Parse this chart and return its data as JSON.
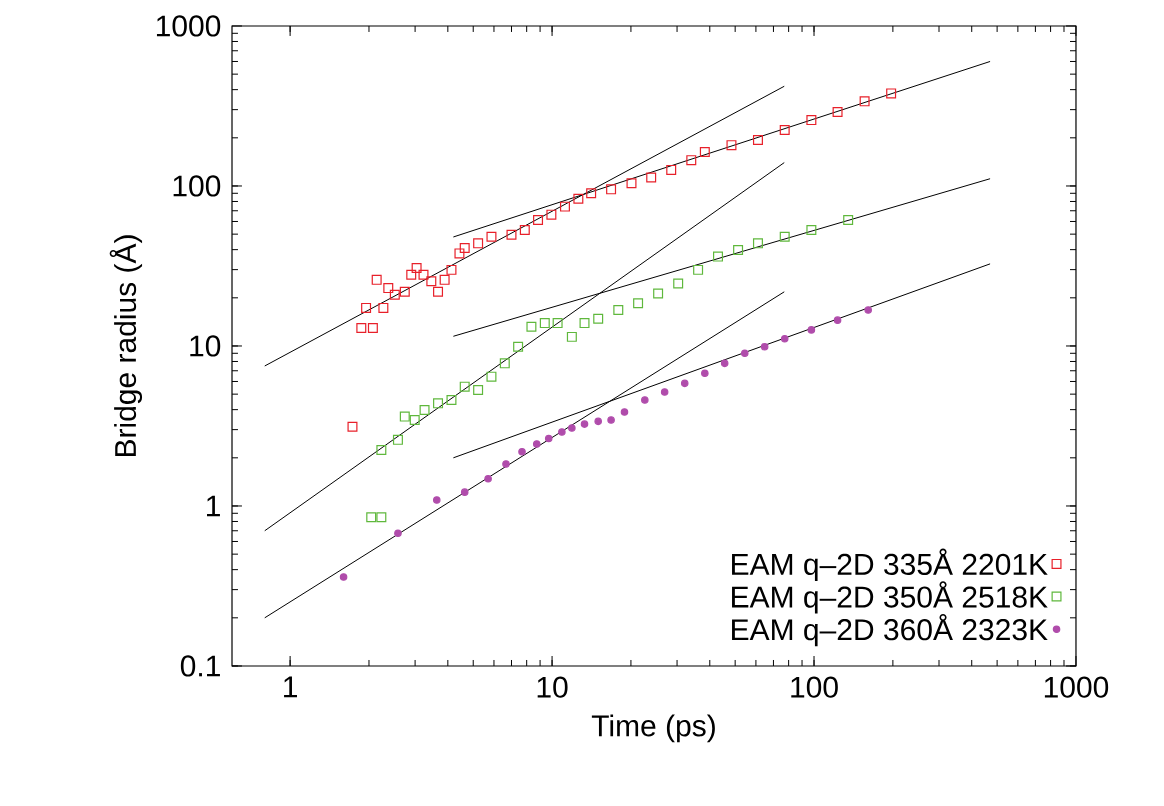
{
  "chart_data": {
    "type": "scatter",
    "xlabel": "Time (ps)",
    "ylabel": "Bridge radius (Å)",
    "log": "xy",
    "xlim": [
      0.6,
      1000
    ],
    "ylim": [
      0.1,
      1000
    ],
    "xticks": [
      1,
      10,
      100,
      1000
    ],
    "yticks": [
      0.1,
      1,
      10,
      100,
      1000
    ],
    "grid": false,
    "legend": "bottom right",
    "series": [
      {
        "name": "EAM q–2D 335Å 2201K",
        "color": "#e8202a",
        "marker": "square",
        "x": [
          1.73,
          1.87,
          2.07,
          1.95,
          2.27,
          2.14,
          2.37,
          2.51,
          2.74,
          2.9,
          3.04,
          3.23,
          3.46,
          3.67,
          3.89,
          4.13,
          4.43,
          4.64,
          5.22,
          5.87,
          7.0,
          7.87,
          8.84,
          9.94,
          11.2,
          12.6,
          14.1,
          16.8,
          20.1,
          23.9,
          28.5,
          34.0,
          38.3,
          48.4,
          61.1,
          77.3,
          97.7,
          123,
          156,
          197
        ],
        "values": [
          3.13,
          12.96,
          12.96,
          17.3,
          17.3,
          25.9,
          23.0,
          20.9,
          21.8,
          27.9,
          30.7,
          27.9,
          25.4,
          21.8,
          25.9,
          29.9,
          37.9,
          41.0,
          43.8,
          48.2,
          49.6,
          53.1,
          61.3,
          66.2,
          74.3,
          83.3,
          90.0,
          95.3,
          104,
          113,
          126,
          145,
          163,
          180,
          194,
          224,
          258,
          290,
          338,
          379
        ]
      },
      {
        "name": "EAM q–2D 350Å 2518K",
        "color": "#5fb83c",
        "marker": "square",
        "x": [
          2.04,
          2.23,
          2.23,
          2.58,
          2.74,
          2.99,
          3.26,
          3.67,
          4.13,
          4.64,
          5.22,
          5.87,
          6.6,
          7.42,
          8.34,
          9.38,
          10.5,
          11.9,
          13.3,
          15.0,
          17.9,
          21.3,
          25.4,
          30.3,
          36.1,
          43.0,
          51.3,
          61.1,
          77.3,
          97.7,
          135
        ],
        "values": [
          0.85,
          0.85,
          2.24,
          2.59,
          3.62,
          3.45,
          3.98,
          4.38,
          4.6,
          5.57,
          5.31,
          6.43,
          7.79,
          9.9,
          13.2,
          13.9,
          13.9,
          11.4,
          13.9,
          14.8,
          16.8,
          18.5,
          21.3,
          24.6,
          29.9,
          36.2,
          39.8,
          43.8,
          48.2,
          53.1,
          61.3
        ]
      },
      {
        "name": "EAM q–2D 360Å 2323K",
        "color": "#b04cab",
        "marker": "circle",
        "x": [
          1.6,
          2.58,
          3.63,
          4.64,
          5.7,
          6.67,
          7.68,
          8.74,
          9.71,
          10.9,
          11.9,
          13.3,
          15.0,
          16.8,
          18.9,
          22.6,
          26.9,
          32.1,
          38.3,
          45.6,
          54.4,
          64.8,
          77.3,
          97.7,
          123,
          161
        ],
        "values": [
          0.36,
          0.675,
          1.09,
          1.22,
          1.48,
          1.83,
          2.18,
          2.44,
          2.64,
          2.9,
          3.07,
          3.25,
          3.38,
          3.45,
          3.87,
          4.6,
          5.16,
          5.84,
          6.75,
          7.79,
          9.0,
          9.9,
          11.1,
          12.6,
          14.5,
          16.8
        ]
      },
      {
        "type": "line",
        "color": "#000000",
        "marker": "none",
        "x": [
          0.8,
          77
        ],
        "values": [
          7.5,
          420
        ]
      },
      {
        "type": "line",
        "color": "#000000",
        "marker": "none",
        "x": [
          4.2,
          470
        ],
        "values": [
          48,
          600
        ]
      },
      {
        "type": "line",
        "color": "#000000",
        "marker": "none",
        "x": [
          0.8,
          77
        ],
        "values": [
          0.7,
          140
        ]
      },
      {
        "type": "line",
        "color": "#000000",
        "marker": "none",
        "x": [
          4.2,
          470
        ],
        "values": [
          11.5,
          111
        ]
      },
      {
        "type": "line",
        "color": "#000000",
        "marker": "none",
        "x": [
          0.8,
          77
        ],
        "values": [
          0.2,
          21.8
        ]
      },
      {
        "type": "line",
        "color": "#000000",
        "marker": "none",
        "x": [
          4.2,
          470
        ],
        "values": [
          2.0,
          32.6
        ]
      }
    ]
  }
}
